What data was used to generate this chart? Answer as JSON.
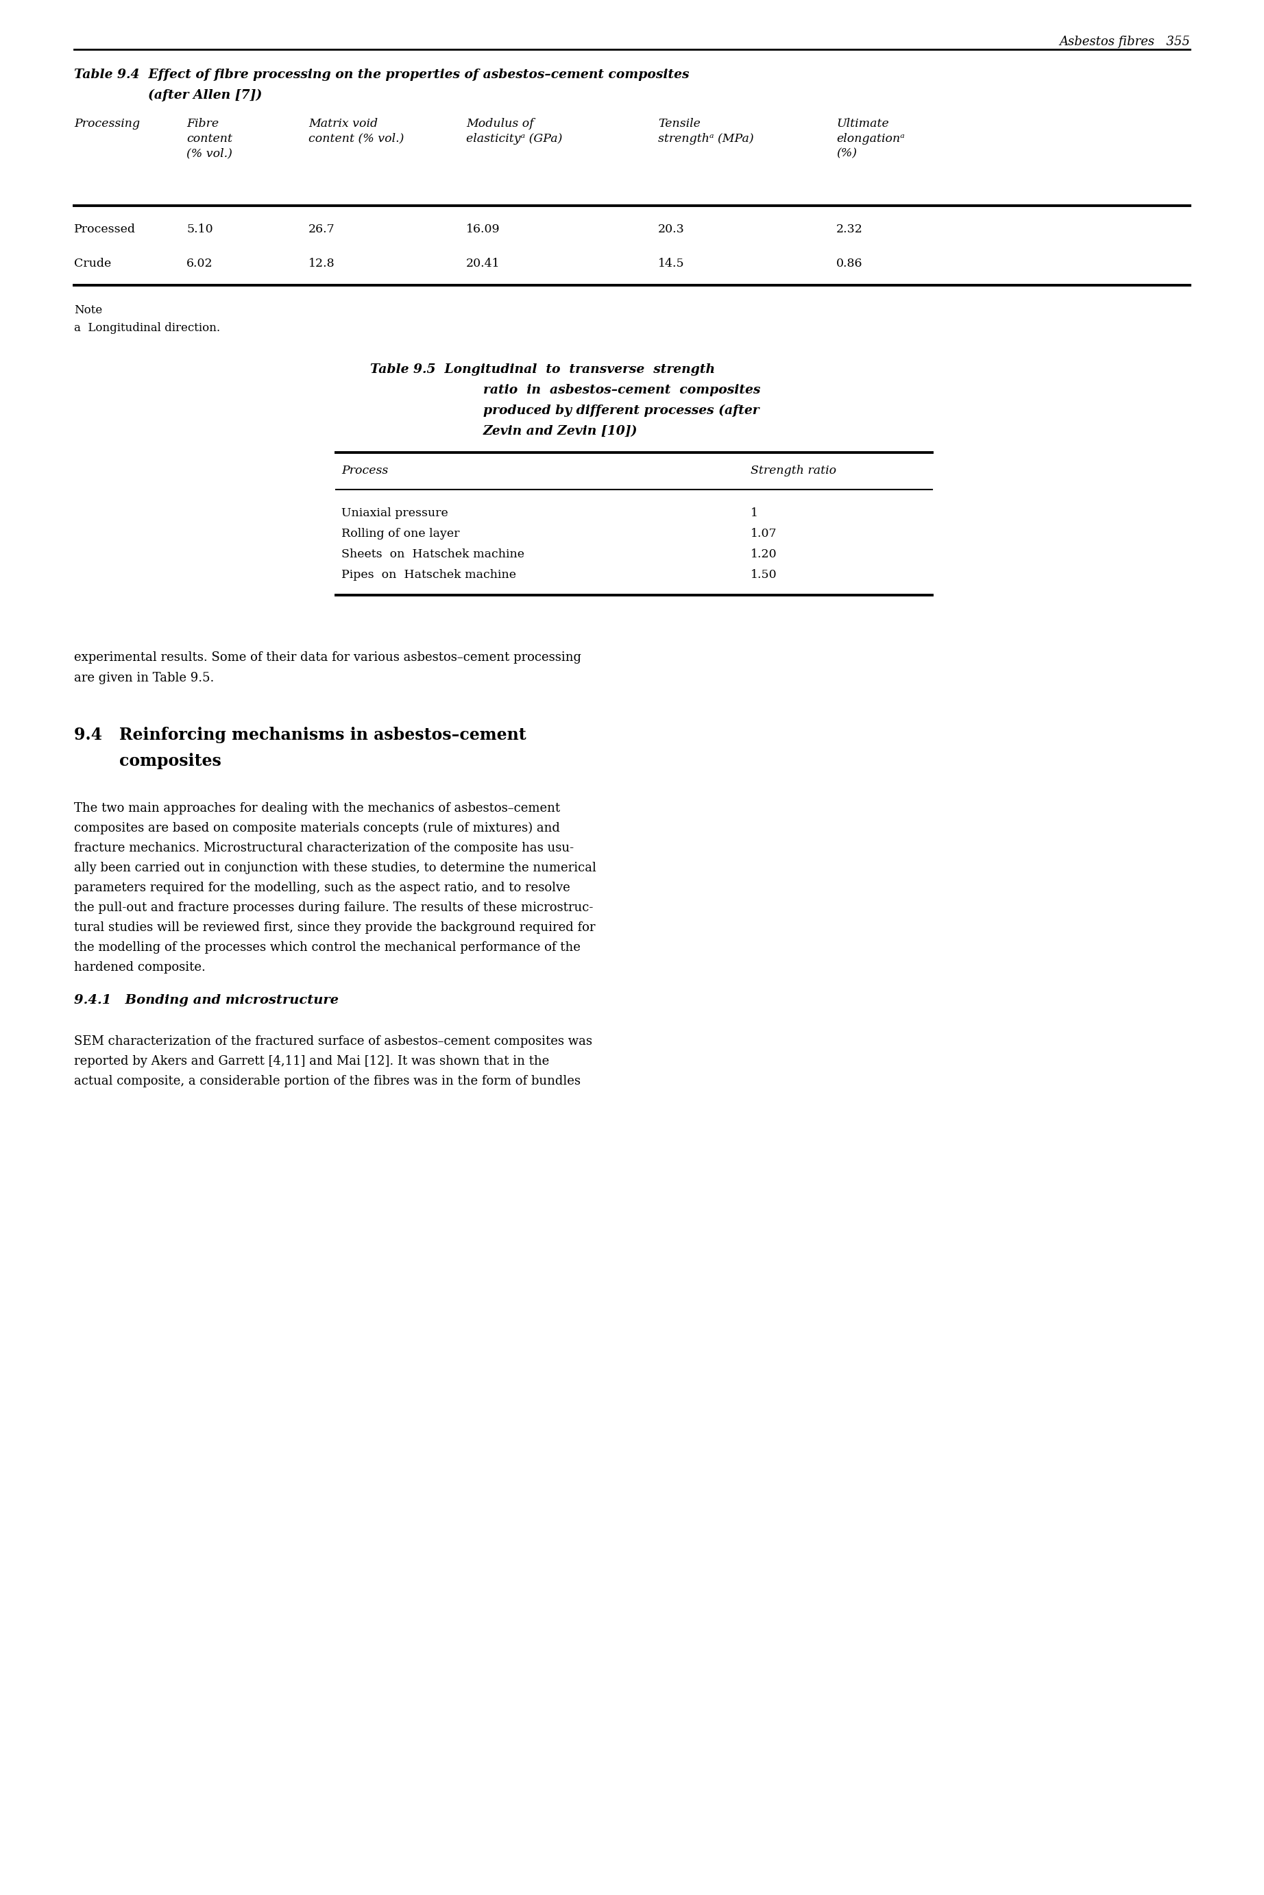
{
  "page_header": "Asbestos fibres   355",
  "table94_title_line1": "Table 9.4  Effect of fibre processing on the properties of asbestos–cement composites",
  "table94_title_line2": "         (after Allen [7])",
  "table94_headers": [
    "Processing",
    "Fibre\ncontent\n(% vol.)",
    "Matrix void\ncontent (% vol.)",
    "Modulus of\nelasticityᵃ (GPa)",
    "Tensile\nstrengthᵃ (MPa)",
    "Ultimate\nelongationᵃ\n(%)"
  ],
  "table94_rows": [
    [
      "Processed",
      "5.10",
      "26.7",
      "16.09",
      "20.3",
      "2.32"
    ],
    [
      "Crude",
      "6.02",
      "12.8",
      "20.41",
      "14.5",
      "0.86"
    ]
  ],
  "table94_note_line1": "Note",
  "table94_note_line2": "a  Longitudinal direction.",
  "table95_title_lines": [
    "Table 9.5  Longitudinal  to  transverse  strength",
    "ratio  in  asbestos–cement  composites",
    "produced by different processes (after",
    "Zevin and Zevin [10])"
  ],
  "table95_col_headers": [
    "Process",
    "Strength ratio"
  ],
  "table95_rows": [
    [
      "Uniaxial pressure",
      "1"
    ],
    [
      "Rolling of one layer",
      "1.07"
    ],
    [
      "Sheets  on  Hatschek machine",
      "1.20"
    ],
    [
      "Pipes  on  Hatschek machine",
      "1.50"
    ]
  ],
  "para1_lines": [
    "experimental results. Some of their data for various asbestos–cement processing",
    "are given in Table 9.5."
  ],
  "section_heading_lines": [
    "9.4   Reinforcing mechanisms in asbestos–cement",
    "composites"
  ],
  "body_text_lines": [
    "The two main approaches for dealing with the mechanics of asbestos–cement",
    "composites are based on composite materials concepts (rule of mixtures) and",
    "fracture mechanics. Microstructural characterization of the composite has usu-",
    "ally been carried out in conjunction with these studies, to determine the numerical",
    "parameters required for the modelling, such as the aspect ratio, and to resolve",
    "the pull-out and fracture processes during failure. The results of these microstruc-",
    "tural studies will be reviewed first, since they provide the background required for",
    "the modelling of the processes which control the mechanical performance of the",
    "hardened composite."
  ],
  "subsection_heading": "9.4.1   Bonding and microstructure",
  "body_text2_lines": [
    "SEM characterization of the fractured surface of asbestos–cement composites was",
    "reported by Akers and Garrett [4,11] and Mai [12]. It was shown that in the",
    "actual composite, a considerable portion of the fibres was in the form of bundles"
  ],
  "bg_color": "#ffffff",
  "text_color": "#000000"
}
